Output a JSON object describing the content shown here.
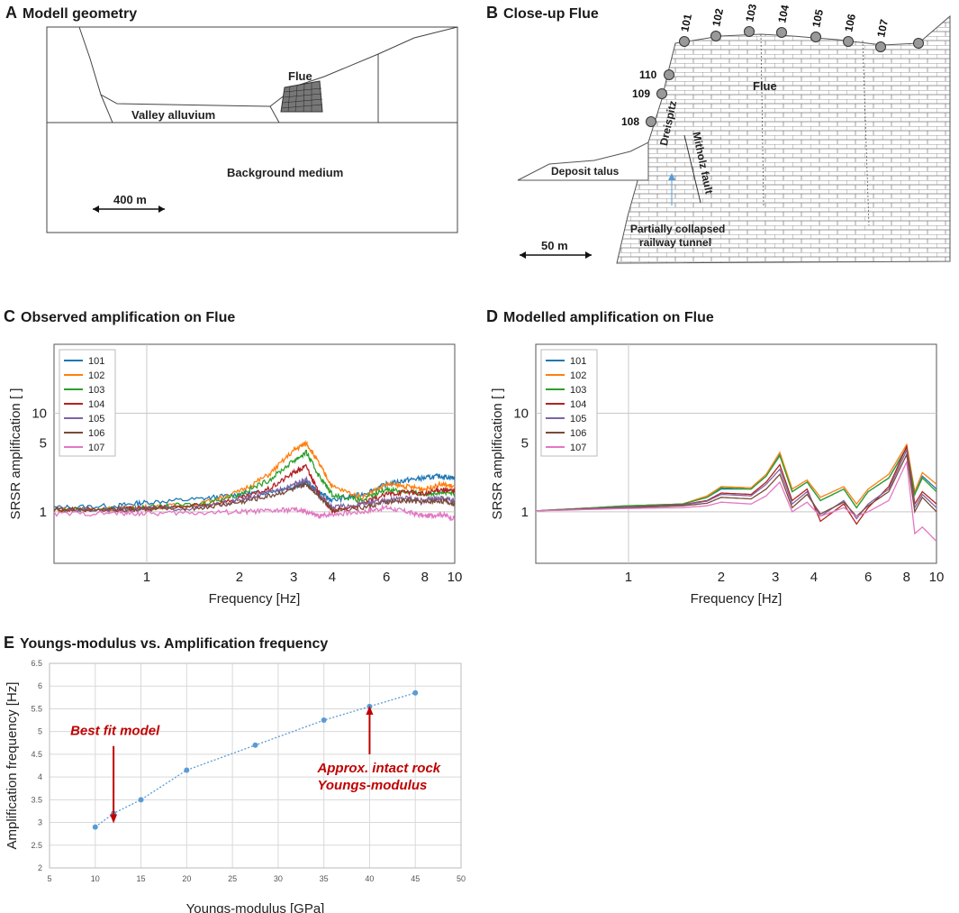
{
  "panels": {
    "a_title": {
      "letter": "A",
      "text": "Modell geometry"
    },
    "b_title": {
      "letter": "B",
      "text": "Close-up Flue"
    },
    "c_title": {
      "letter": "C",
      "text": "Observed amplification on Flue"
    },
    "d_title": {
      "letter": "D",
      "text": "Modelled amplification on Flue"
    },
    "e_title": {
      "letter": "E",
      "text": "Youngs-modulus vs. Amplification frequency"
    }
  },
  "geometry": {
    "flue": "Flue",
    "valley_alluvium": "Valley alluvium",
    "background_medium": "Background medium",
    "scale": "400 m"
  },
  "closeup": {
    "stations": [
      "101",
      "102",
      "103",
      "104",
      "105",
      "106",
      "107",
      "108",
      "109",
      "110"
    ],
    "flue": "Flue",
    "dreispitz": "Dreispitz",
    "mitholz_fault": "Mitholz fault",
    "deposit_talus": "Deposit talus",
    "tunnel_line1": "Partially collapsed",
    "tunnel_line2": "railway tunnel",
    "scale": "50 m"
  },
  "colors": {
    "s101": "#1f77b4",
    "s102": "#ff7f0e",
    "s103": "#2ca02c",
    "s104": "#b22222",
    "s105": "#8064a2",
    "s106": "#7a4a3a",
    "s107": "#e377c2",
    "marker": "#5b9bd5",
    "annot": "#c00000",
    "grid": "#c8c8c8"
  },
  "chart_data": [
    {
      "id": "C",
      "type": "line",
      "title": "Observed amplification on Flue",
      "xlabel": "Frequency [Hz]",
      "ylabel": "SRSR amplification [ ]",
      "xscale": "log",
      "yscale": "log",
      "xlim": [
        0.5,
        10
      ],
      "ylim": [
        0.3,
        50
      ],
      "xticks": [
        {
          "v": 1,
          "t": "1"
        },
        {
          "v": 2,
          "t": "2"
        },
        {
          "v": 3,
          "t": "3"
        },
        {
          "v": 4,
          "t": "4"
        },
        {
          "v": 6,
          "t": "6"
        },
        {
          "v": 8,
          "t": "8"
        },
        {
          "v": 10,
          "t": "10"
        }
      ],
      "yticks": [
        {
          "v": 1,
          "t": "1"
        },
        {
          "v": 5,
          "t": "5"
        },
        {
          "v": 10,
          "t": "10"
        }
      ],
      "gridlines_x": [
        1
      ],
      "gridlines_y": [
        1,
        10
      ],
      "legend": "top-left",
      "series": [
        {
          "name": "101",
          "x": [
            0.5,
            0.8,
            1,
            1.5,
            2,
            2.5,
            3,
            3.3,
            3.6,
            4,
            5,
            6,
            7,
            8,
            9,
            10
          ],
          "y": [
            1.1,
            1.15,
            1.25,
            1.35,
            1.5,
            1.6,
            1.8,
            2.0,
            1.6,
            1.3,
            1.5,
            1.9,
            2.1,
            2.2,
            2.3,
            2.2
          ]
        },
        {
          "name": "102",
          "x": [
            0.5,
            0.8,
            1,
            1.5,
            2,
            2.5,
            3,
            3.3,
            3.6,
            4,
            5,
            6,
            7,
            8,
            9,
            10
          ],
          "y": [
            1.05,
            1.08,
            1.1,
            1.2,
            1.6,
            2.4,
            4.2,
            5.0,
            3.2,
            1.8,
            1.4,
            1.9,
            1.8,
            1.7,
            1.9,
            1.8
          ]
        },
        {
          "name": "103",
          "x": [
            0.5,
            0.8,
            1,
            1.5,
            2,
            2.5,
            3,
            3.3,
            3.6,
            4,
            5,
            6,
            7,
            8,
            9,
            10
          ],
          "y": [
            1.05,
            1.07,
            1.1,
            1.2,
            1.5,
            2.1,
            3.3,
            4.0,
            2.4,
            1.5,
            1.3,
            1.7,
            1.6,
            1.5,
            1.6,
            1.5
          ]
        },
        {
          "name": "104",
          "x": [
            0.5,
            0.8,
            1,
            1.5,
            2,
            2.5,
            3,
            3.3,
            3.6,
            4,
            5,
            6,
            7,
            8,
            9,
            10
          ],
          "y": [
            1.05,
            1.06,
            1.08,
            1.15,
            1.35,
            1.7,
            2.5,
            2.9,
            1.6,
            1.0,
            1.2,
            1.5,
            1.6,
            1.5,
            1.7,
            1.6
          ]
        },
        {
          "name": "105",
          "x": [
            0.5,
            0.8,
            1,
            1.5,
            2,
            2.5,
            3,
            3.3,
            3.6,
            4,
            5,
            6,
            7,
            8,
            9,
            10
          ],
          "y": [
            1.05,
            1.05,
            1.07,
            1.1,
            1.3,
            1.55,
            1.9,
            2.1,
            1.5,
            1.1,
            1.2,
            1.3,
            1.4,
            1.3,
            1.4,
            1.3
          ]
        },
        {
          "name": "106",
          "x": [
            0.5,
            0.8,
            1,
            1.5,
            2,
            2.5,
            3,
            3.3,
            3.6,
            4,
            5,
            6,
            7,
            8,
            9,
            10
          ],
          "y": [
            1.05,
            1.05,
            1.06,
            1.1,
            1.25,
            1.45,
            1.7,
            1.9,
            1.5,
            1.05,
            1.1,
            1.25,
            1.3,
            1.25,
            1.3,
            1.2
          ]
        },
        {
          "name": "107",
          "x": [
            0.5,
            0.8,
            1,
            1.5,
            2,
            2.5,
            3,
            3.3,
            3.6,
            4,
            5,
            6,
            7,
            8,
            9,
            10
          ],
          "y": [
            0.95,
            0.97,
            0.96,
            0.98,
            1.0,
            1.02,
            1.05,
            1.0,
            0.9,
            0.95,
            1.0,
            1.1,
            1.0,
            0.9,
            0.95,
            0.85
          ]
        }
      ]
    },
    {
      "id": "D",
      "type": "line",
      "title": "Modelled amplification on Flue",
      "xlabel": "Frequency [Hz]",
      "ylabel": "SRSR amplification [ ]",
      "xscale": "log",
      "yscale": "log",
      "xlim": [
        0.5,
        10
      ],
      "ylim": [
        0.3,
        50
      ],
      "xticks": [
        {
          "v": 1,
          "t": "1"
        },
        {
          "v": 2,
          "t": "2"
        },
        {
          "v": 3,
          "t": "3"
        },
        {
          "v": 4,
          "t": "4"
        },
        {
          "v": 6,
          "t": "6"
        },
        {
          "v": 8,
          "t": "8"
        },
        {
          "v": 10,
          "t": "10"
        }
      ],
      "yticks": [
        {
          "v": 1,
          "t": "1"
        },
        {
          "v": 5,
          "t": "5"
        },
        {
          "v": 10,
          "t": "10"
        }
      ],
      "gridlines_x": [
        1
      ],
      "gridlines_y": [
        1,
        10
      ],
      "legend": "top-left",
      "series": [
        {
          "name": "101",
          "x": [
            0.5,
            1,
            1.5,
            1.8,
            2,
            2.5,
            2.8,
            3.1,
            3.4,
            3.8,
            4.2,
            5,
            5.5,
            6,
            7,
            8,
            8.5,
            9,
            10
          ],
          "y": [
            1.02,
            1.15,
            1.2,
            1.4,
            1.7,
            1.7,
            2.3,
            3.8,
            1.6,
            2.0,
            1.3,
            1.7,
            1.1,
            1.6,
            2.2,
            4.5,
            1.5,
            2.3,
            1.7
          ]
        },
        {
          "name": "102",
          "x": [
            0.5,
            1,
            1.5,
            1.8,
            2,
            2.5,
            2.8,
            3.1,
            3.4,
            3.8,
            4.2,
            5,
            5.5,
            6,
            7,
            8,
            8.5,
            9,
            10
          ],
          "y": [
            1.02,
            1.15,
            1.2,
            1.45,
            1.8,
            1.75,
            2.4,
            4.0,
            1.7,
            2.1,
            1.4,
            1.8,
            1.2,
            1.7,
            2.4,
            4.8,
            1.6,
            2.5,
            1.9
          ]
        },
        {
          "name": "103",
          "x": [
            0.5,
            1,
            1.5,
            1.8,
            2,
            2.5,
            2.8,
            3.1,
            3.4,
            3.8,
            4.2,
            5,
            5.5,
            6,
            7,
            8,
            8.5,
            9,
            10
          ],
          "y": [
            1.02,
            1.15,
            1.2,
            1.4,
            1.75,
            1.7,
            2.3,
            3.7,
            1.6,
            2.0,
            1.3,
            1.7,
            1.1,
            1.6,
            2.2,
            4.4,
            1.5,
            2.2,
            1.6
          ]
        },
        {
          "name": "104",
          "x": [
            0.5,
            1,
            1.5,
            1.8,
            2,
            2.5,
            2.8,
            3.1,
            3.4,
            3.8,
            4.2,
            5,
            5.5,
            6,
            7,
            8,
            8.5,
            9,
            10
          ],
          "y": [
            1.02,
            1.12,
            1.18,
            1.3,
            1.55,
            1.5,
            2.0,
            3.0,
            1.3,
            1.7,
            0.8,
            1.2,
            0.75,
            1.1,
            1.8,
            4.6,
            1.2,
            1.6,
            1.2
          ]
        },
        {
          "name": "105",
          "x": [
            0.5,
            1,
            1.5,
            1.8,
            2,
            2.5,
            2.8,
            3.1,
            3.4,
            3.8,
            4.2,
            5,
            5.5,
            6,
            7,
            8,
            8.5,
            9,
            10
          ],
          "y": [
            1.02,
            1.12,
            1.17,
            1.28,
            1.5,
            1.45,
            1.9,
            2.7,
            1.2,
            1.6,
            0.9,
            1.3,
            0.85,
            1.2,
            1.7,
            4.2,
            1.1,
            1.5,
            1.1
          ]
        },
        {
          "name": "106",
          "x": [
            0.5,
            1,
            1.5,
            1.8,
            2,
            2.5,
            2.8,
            3.1,
            3.4,
            3.8,
            4.2,
            5,
            5.5,
            6,
            7,
            8,
            8.5,
            9,
            10
          ],
          "y": [
            1.02,
            1.1,
            1.15,
            1.22,
            1.4,
            1.35,
            1.7,
            2.4,
            1.1,
            1.5,
            0.95,
            1.25,
            0.9,
            1.15,
            1.6,
            3.8,
            1.0,
            1.4,
            1.0
          ]
        },
        {
          "name": "107",
          "x": [
            0.5,
            1,
            1.5,
            1.8,
            2,
            2.5,
            2.8,
            3.1,
            3.4,
            3.8,
            4.2,
            5,
            5.5,
            6,
            7,
            8,
            8.5,
            9,
            10
          ],
          "y": [
            1.02,
            1.08,
            1.1,
            1.15,
            1.25,
            1.2,
            1.45,
            2.0,
            1.0,
            1.25,
            0.9,
            1.1,
            0.9,
            1.0,
            1.3,
            3.2,
            0.6,
            0.7,
            0.5
          ]
        }
      ]
    },
    {
      "id": "E",
      "type": "scatter",
      "title": "Youngs-modulus vs. Amplification frequency",
      "xlabel": "Youngs-modulus [GPa]",
      "ylabel": "Amplification frequency [Hz]",
      "xlim": [
        5,
        50
      ],
      "ylim": [
        2,
        6.5
      ],
      "xticks": [
        5,
        10,
        15,
        20,
        25,
        30,
        35,
        40,
        45,
        50
      ],
      "yticks": [
        2,
        2.5,
        3,
        3.5,
        4,
        4.5,
        5,
        5.5,
        6,
        6.5
      ],
      "grid": true,
      "trendline": "dotted",
      "x": [
        10,
        12,
        15,
        20,
        27.5,
        35,
        40,
        45
      ],
      "y": [
        2.9,
        3.2,
        3.5,
        4.15,
        4.7,
        5.25,
        5.55,
        5.85
      ],
      "annotations": [
        {
          "text": "Best fit model",
          "x": 12,
          "y": 3.3
        },
        {
          "line1": "Approx. intact rock",
          "line2": "Youngs-modulus",
          "x": 40,
          "y": 5.6
        }
      ]
    }
  ]
}
